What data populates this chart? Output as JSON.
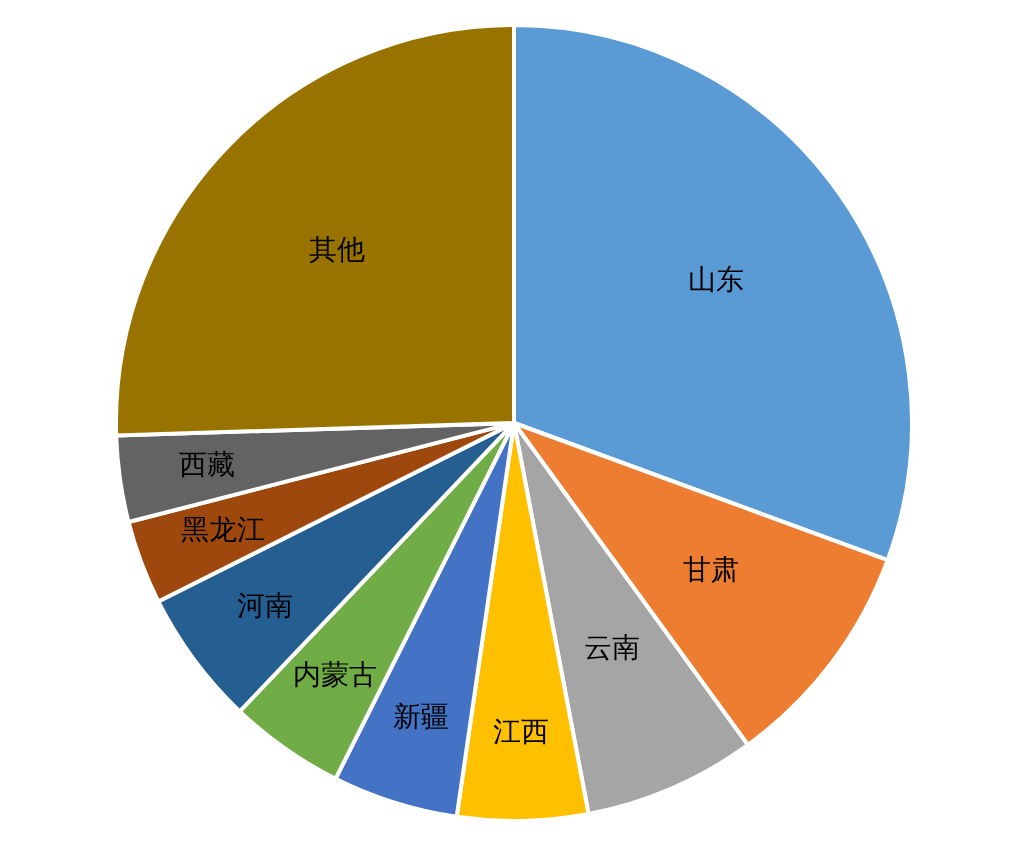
{
  "chart_data": {
    "type": "pie",
    "categories": [
      "山东",
      "甘肃",
      "云南",
      "江西",
      "新疆",
      "内蒙古",
      "河南",
      "黑龙江",
      "西藏",
      "其他"
    ],
    "values": [
      30.6,
      9.4,
      7,
      5.3,
      5.1,
      4.7,
      5.5,
      3.4,
      3.5,
      25.5
    ],
    "colors": [
      "#5b9bd5",
      "#ed7d31",
      "#a5a5a5",
      "#ffc000",
      "#4472c4",
      "#70ad47",
      "#255e91",
      "#9e480e",
      "#636363",
      "#997300"
    ]
  }
}
